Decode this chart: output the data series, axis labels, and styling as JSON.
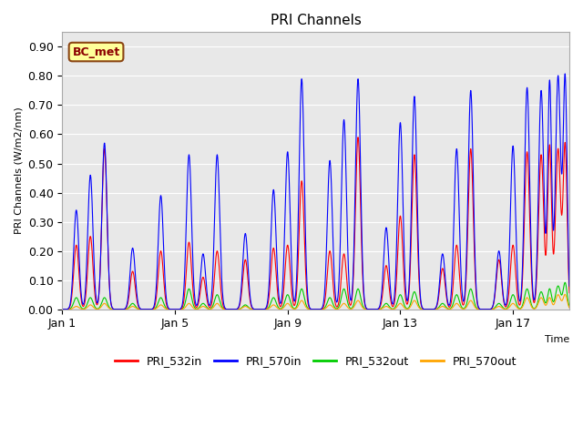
{
  "title": "PRI Channels",
  "ylabel": "PRI Channels (W/m2/nm)",
  "xlabel": "Time",
  "ylim": [
    0.0,
    0.95
  ],
  "yticks": [
    0.0,
    0.1,
    0.2,
    0.3,
    0.4,
    0.5,
    0.6,
    0.7,
    0.8,
    0.9
  ],
  "xtick_labels": [
    "Jan 1",
    "Jan 5",
    "Jan 9",
    "Jan 13",
    "Jan 17"
  ],
  "xtick_positions": [
    0,
    4,
    8,
    12,
    16
  ],
  "colors": {
    "pri532in": "#FF0000",
    "pri570in": "#0000FF",
    "pri532out": "#00CC00",
    "pri570out": "#FFA500"
  },
  "annotation": {
    "text": "BC_met",
    "bg_color": "#FFFF99",
    "border_color": "#8B4513",
    "text_color": "#8B0000"
  },
  "legend_labels": [
    "PRI_532in",
    "PRI_570in",
    "PRI_532out",
    "PRI_570out"
  ],
  "fig_bg": "#FFFFFF",
  "plot_bg": "#E8E8E8",
  "spike_days": [
    0.5,
    1.0,
    1.5,
    2.5,
    3.5,
    4.5,
    5.0,
    5.5,
    6.5,
    7.5,
    8.0,
    8.5,
    9.5,
    10.0,
    10.5,
    11.5,
    12.0,
    12.5,
    13.5,
    14.0,
    14.5,
    15.5,
    16.0,
    16.5,
    17.0,
    17.3,
    17.6,
    17.85
  ],
  "spike_widths": [
    0.09,
    0.09,
    0.09,
    0.09,
    0.09,
    0.09,
    0.09,
    0.09,
    0.09,
    0.09,
    0.09,
    0.09,
    0.09,
    0.09,
    0.09,
    0.09,
    0.09,
    0.09,
    0.09,
    0.09,
    0.09,
    0.09,
    0.09,
    0.09,
    0.09,
    0.07,
    0.09,
    0.07
  ],
  "peaks_570in": [
    0.34,
    0.46,
    0.57,
    0.21,
    0.39,
    0.53,
    0.19,
    0.53,
    0.26,
    0.41,
    0.54,
    0.79,
    0.51,
    0.65,
    0.79,
    0.28,
    0.64,
    0.73,
    0.19,
    0.55,
    0.75,
    0.2,
    0.56,
    0.76,
    0.75,
    0.78,
    0.8,
    0.79
  ],
  "peaks_532in": [
    0.22,
    0.25,
    0.55,
    0.13,
    0.2,
    0.23,
    0.11,
    0.2,
    0.17,
    0.21,
    0.22,
    0.44,
    0.2,
    0.19,
    0.59,
    0.15,
    0.32,
    0.53,
    0.14,
    0.22,
    0.55,
    0.17,
    0.22,
    0.54,
    0.53,
    0.56,
    0.55,
    0.56
  ],
  "peaks_532out": [
    0.04,
    0.04,
    0.04,
    0.02,
    0.04,
    0.07,
    0.02,
    0.05,
    0.015,
    0.04,
    0.05,
    0.07,
    0.04,
    0.07,
    0.07,
    0.02,
    0.05,
    0.06,
    0.02,
    0.05,
    0.07,
    0.02,
    0.05,
    0.07,
    0.06,
    0.07,
    0.08,
    0.09
  ],
  "peaks_570out": [
    0.01,
    0.015,
    0.02,
    0.01,
    0.015,
    0.02,
    0.01,
    0.02,
    0.01,
    0.015,
    0.02,
    0.03,
    0.015,
    0.02,
    0.03,
    0.01,
    0.02,
    0.03,
    0.01,
    0.02,
    0.03,
    0.01,
    0.02,
    0.04,
    0.04,
    0.04,
    0.05,
    0.05
  ]
}
